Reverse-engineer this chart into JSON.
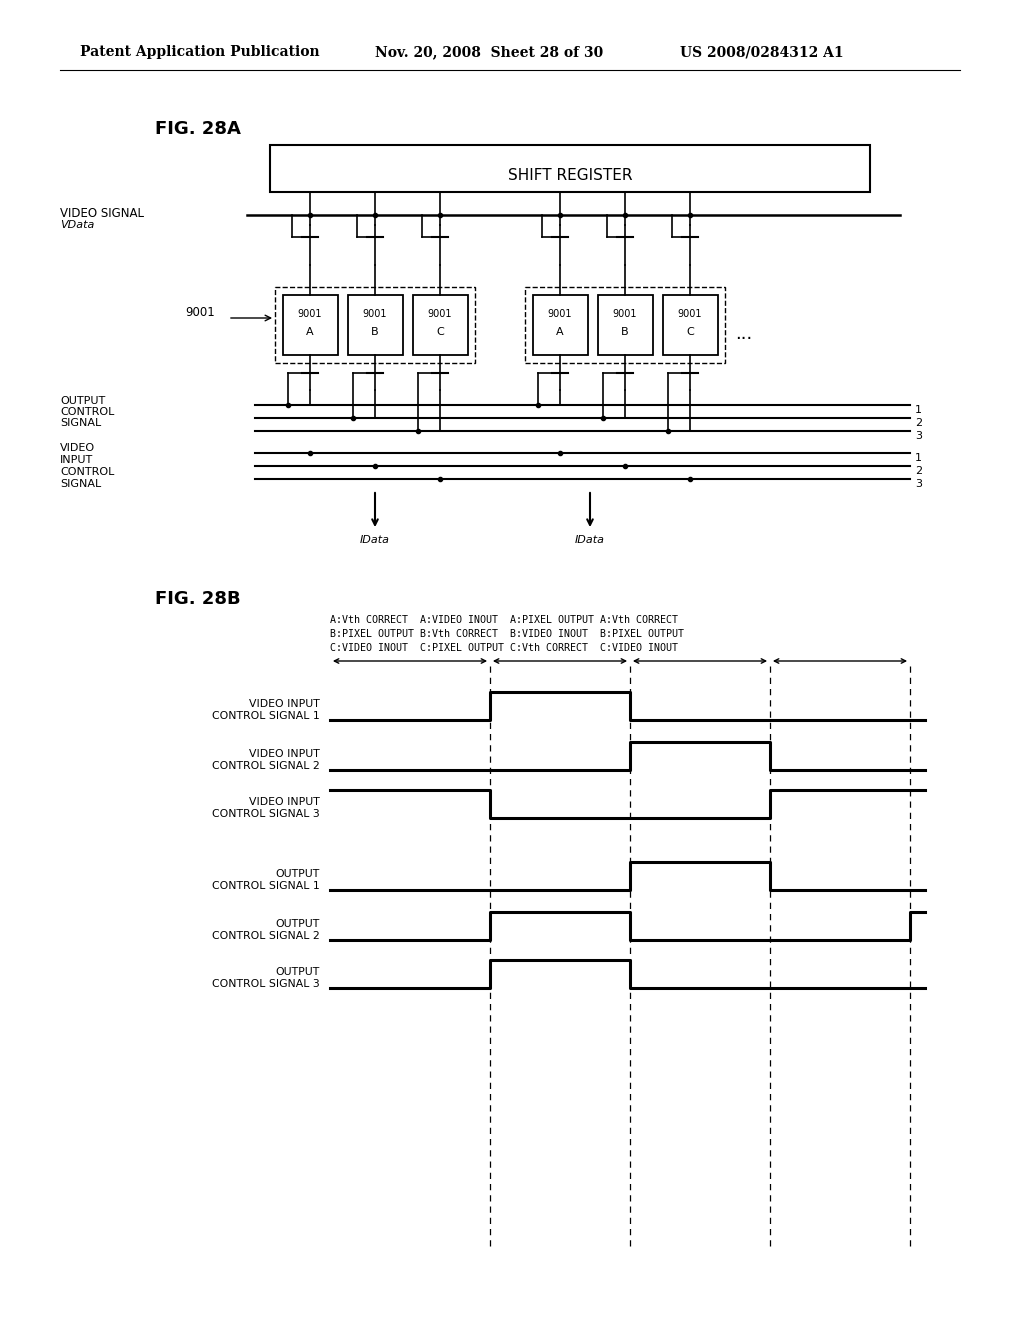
{
  "bg_color": "#ffffff",
  "header_left": "Patent Application Publication",
  "header_mid": "Nov. 20, 2008  Sheet 28 of 30",
  "header_right": "US 2008/0284312 A1",
  "fig28a_label": "FIG. 28A",
  "fig28b_label": "FIG. 28B",
  "shift_register_text": "SHIFT REGISTER",
  "idata_label": "IData",
  "timing_header_line1": "A:Vth CORRECT  A:VIDEO INOUT  A:PIXEL OUTPUT A:Vth CORRECT",
  "timing_header_line2": "B:PIXEL OUTPUT B:Vth CORRECT  B:VIDEO INOUT  B:PIXEL OUTPUT",
  "timing_header_line3": "C:VIDEO INOUT  C:PIXEL OUTPUT C:Vth CORRECT  C:VIDEO INOUT"
}
